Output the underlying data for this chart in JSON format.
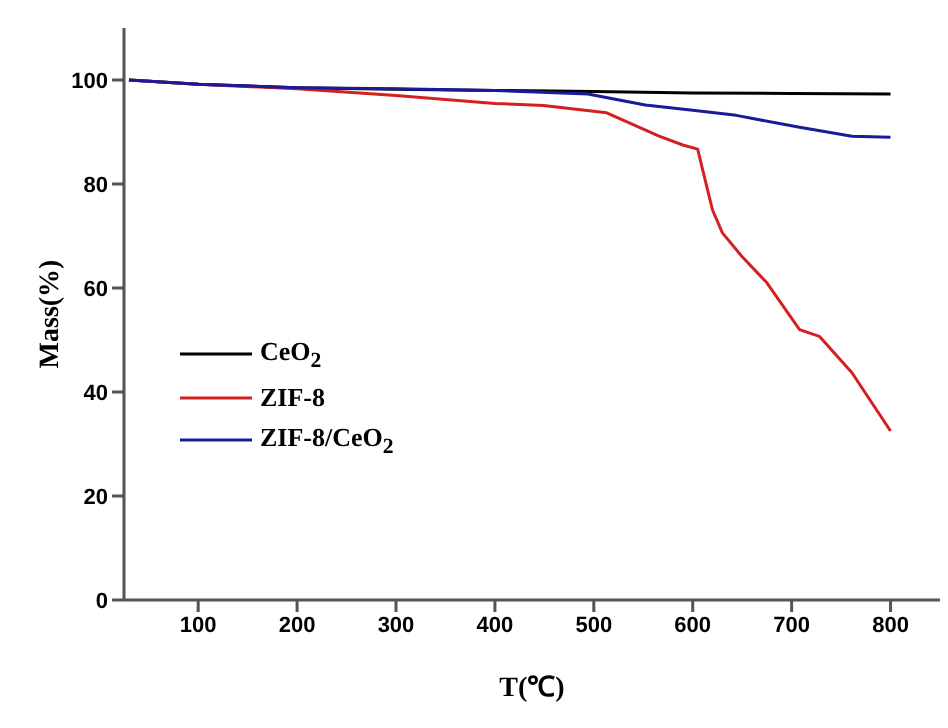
{
  "chart_data": {
    "type": "line",
    "xlabel": "T(℃)",
    "ylabel": "Mass(%)",
    "xlim": [
      25,
      850
    ],
    "ylim": [
      0,
      110
    ],
    "xticks": [
      100,
      200,
      300,
      400,
      500,
      600,
      700,
      800
    ],
    "yticks": [
      0,
      20,
      40,
      60,
      80,
      100
    ],
    "grid": false,
    "legend": "left",
    "marker": "none",
    "line_style": "solid",
    "series": [
      {
        "name": "CeO$_{2}$",
        "color": "#000000",
        "x": [
          30,
          100,
          200,
          300,
          400,
          500,
          600,
          700,
          800
        ],
        "values": [
          100,
          99.2,
          98.5,
          98.2,
          98,
          97.8,
          97.5,
          97.4,
          97.3
        ]
      },
      {
        "name": "ZIF-8",
        "color": "#d42020",
        "x": [
          30,
          100,
          200,
          300,
          400,
          449,
          513,
          566,
          590,
          605,
          611,
          620,
          630,
          650,
          675,
          708,
          728,
          761,
          800
        ],
        "values": [
          100,
          99.2,
          98.3,
          97,
          95.5,
          95.1,
          93.7,
          89.2,
          87.5,
          86.7,
          82,
          75,
          70.6,
          66,
          61,
          52,
          50.7,
          43.7,
          32.5
        ]
      },
      {
        "name": "ZIF-8/CeO$_{2}$",
        "color": "#1a1a9a",
        "x": [
          30,
          100,
          200,
          300,
          400,
          494,
          552,
          600,
          644,
          708,
          761,
          800
        ],
        "values": [
          100,
          99.2,
          98.5,
          98.3,
          98,
          97.3,
          95.2,
          94.2,
          93.2,
          90.9,
          89.2,
          89
        ]
      }
    ]
  }
}
